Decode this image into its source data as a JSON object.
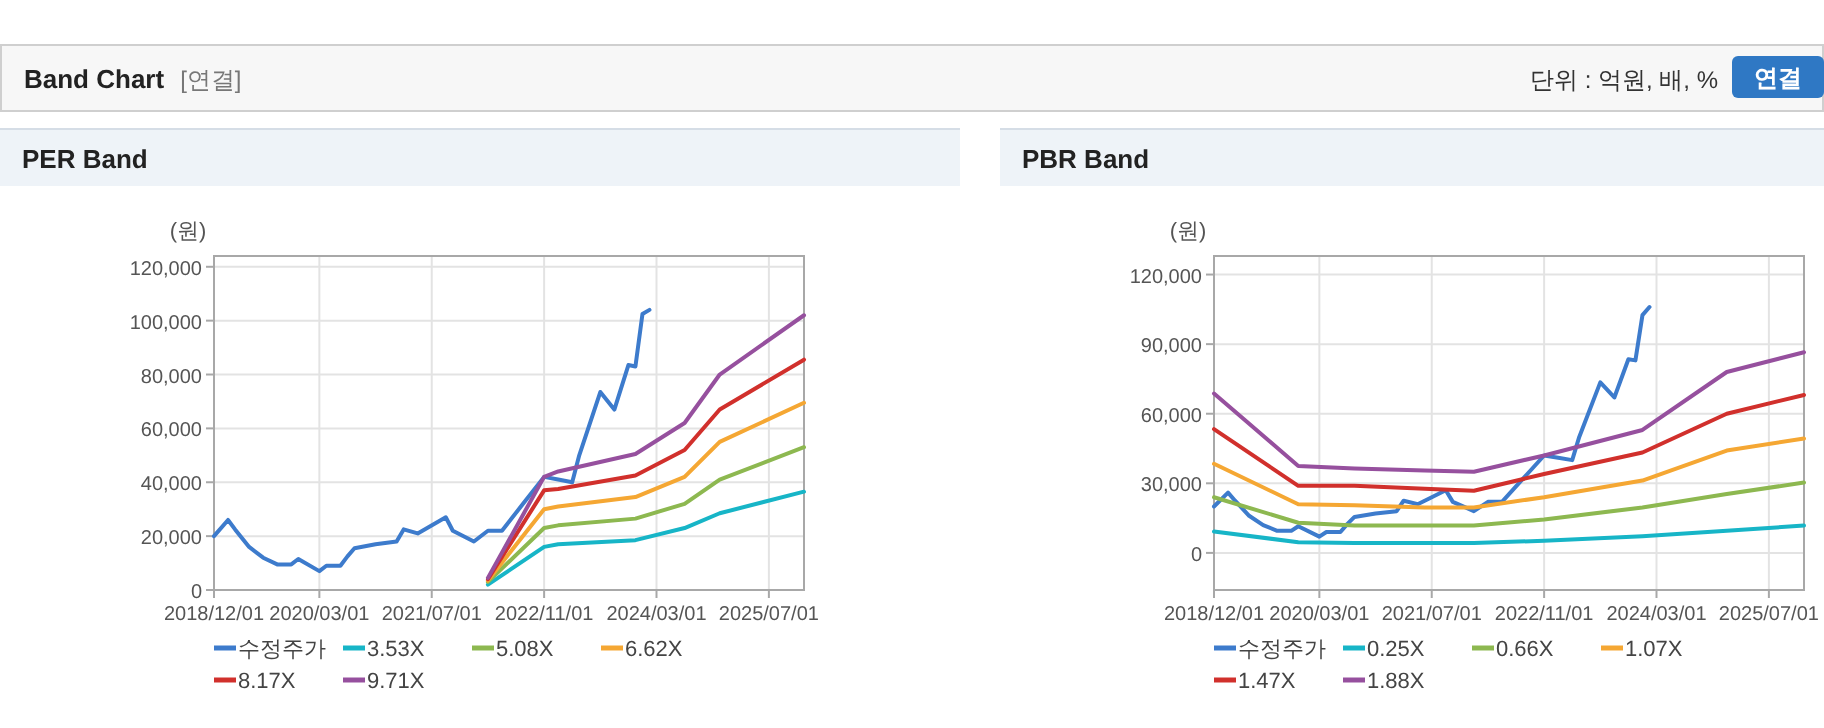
{
  "chart_data": [
    {
      "type": "other",
      "title": "Band Chart",
      "annotations": [
        "[연결]",
        "단위 : 억원, 배, %",
        "연결"
      ]
    },
    {
      "type": "line",
      "title": "PER Band",
      "ylabel": "(원)",
      "xlim": [
        "2018-12-01",
        "2025-12-01"
      ],
      "ylim": [
        0,
        124000
      ],
      "xticks": [
        {
          "value": "2018-12-01",
          "label": "2018/12/01"
        },
        {
          "value": "2020-03-01",
          "label": "2020/03/01"
        },
        {
          "value": "2021-07-01",
          "label": "2021/07/01"
        },
        {
          "value": "2022-11-01",
          "label": "2022/11/01"
        },
        {
          "value": "2024-03-01",
          "label": "2024/03/01"
        },
        {
          "value": "2025-07-01",
          "label": "2025/07/01"
        }
      ],
      "yticks": [
        {
          "value": 0,
          "label": "0"
        },
        {
          "value": 20000,
          "label": "20,000"
        },
        {
          "value": 40000,
          "label": "40,000"
        },
        {
          "value": 60000,
          "label": "60,000"
        },
        {
          "value": 80000,
          "label": "80,000"
        },
        {
          "value": 100000,
          "label": "100,000"
        },
        {
          "value": 120000,
          "label": "120,000"
        }
      ],
      "grid": true,
      "legend": "bottom",
      "series": [
        {
          "name": "수정주가",
          "color": "#3d7bcc",
          "x": [
            "2018-12",
            "2019-02",
            "2019-03",
            "2019-05",
            "2019-07",
            "2019-09",
            "2019-11",
            "2019-12",
            "2020-03",
            "2020-04",
            "2020-06",
            "2020-07",
            "2020-08",
            "2020-11",
            "2021-02",
            "2021-03",
            "2021-05",
            "2021-09",
            "2021-10",
            "2022-01",
            "2022-03",
            "2022-05",
            "2022-08",
            "2022-11",
            "2023-01",
            "2023-03",
            "2023-04",
            "2023-07",
            "2023-09",
            "2023-11",
            "2023-12",
            "2024-01",
            "2024-02"
          ],
          "values": [
            20000,
            26000,
            22500,
            16000,
            12000,
            9500,
            9500,
            11500,
            7000,
            9000,
            9000,
            12500,
            15500,
            17000,
            18000,
            22500,
            21000,
            27000,
            22000,
            18000,
            22000,
            22000,
            32000,
            42000,
            41000,
            40000,
            50000,
            73500,
            67000,
            83500,
            83000,
            102500,
            104000
          ]
        },
        {
          "name": "3.53X",
          "color": "#17b5c7",
          "x": [
            "2022-03",
            "2022-11",
            "2023-01",
            "2023-12",
            "2024-07",
            "2024-12",
            "2025-12"
          ],
          "values": [
            2000,
            16000,
            17000,
            18500,
            23000,
            28500,
            36500
          ]
        },
        {
          "name": "5.08X",
          "color": "#8db850",
          "x": [
            "2022-03",
            "2022-11",
            "2023-01",
            "2023-12",
            "2024-07",
            "2024-12",
            "2025-12"
          ],
          "values": [
            3000,
            23000,
            24000,
            26500,
            32000,
            41000,
            53000
          ]
        },
        {
          "name": "6.62X",
          "color": "#f5a733",
          "x": [
            "2022-03",
            "2022-11",
            "2023-01",
            "2023-12",
            "2024-07",
            "2024-12",
            "2025-12"
          ],
          "values": [
            3500,
            30000,
            31000,
            34500,
            42000,
            55000,
            69500
          ]
        },
        {
          "name": "8.17X",
          "color": "#d1302c",
          "x": [
            "2022-03",
            "2022-11",
            "2023-01",
            "2023-12",
            "2024-07",
            "2024-12",
            "2025-12"
          ],
          "values": [
            4000,
            37000,
            37500,
            42500,
            52000,
            67000,
            85500
          ]
        },
        {
          "name": "9.71X",
          "color": "#96509e",
          "x": [
            "2022-03",
            "2022-11",
            "2023-01",
            "2023-12",
            "2024-07",
            "2024-12",
            "2025-12"
          ],
          "values": [
            4500,
            42000,
            44000,
            50500,
            62000,
            80000,
            102000
          ]
        }
      ]
    },
    {
      "type": "line",
      "title": "PBR Band",
      "ylabel": "(원)",
      "xlim": [
        "2018-12-01",
        "2025-12-01"
      ],
      "ylim": [
        -16000,
        128000
      ],
      "xticks": [
        {
          "value": "2018-12-01",
          "label": "2018/12/01"
        },
        {
          "value": "2020-03-01",
          "label": "2020/03/01"
        },
        {
          "value": "2021-07-01",
          "label": "2021/07/01"
        },
        {
          "value": "2022-11-01",
          "label": "2022/11/01"
        },
        {
          "value": "2024-03-01",
          "label": "2024/03/01"
        },
        {
          "value": "2025-07-01",
          "label": "2025/07/01"
        }
      ],
      "yticks": [
        {
          "value": 0,
          "label": "0"
        },
        {
          "value": 30000,
          "label": "30,000"
        },
        {
          "value": 60000,
          "label": "60,000"
        },
        {
          "value": 90000,
          "label": "90,000"
        },
        {
          "value": 120000,
          "label": "120,000"
        }
      ],
      "grid": true,
      "legend": "bottom",
      "series": [
        {
          "name": "수정주가",
          "color": "#3d7bcc",
          "x": [
            "2018-12",
            "2019-02",
            "2019-03",
            "2019-05",
            "2019-07",
            "2019-09",
            "2019-11",
            "2019-12",
            "2020-03",
            "2020-04",
            "2020-06",
            "2020-07",
            "2020-08",
            "2020-11",
            "2021-02",
            "2021-03",
            "2021-05",
            "2021-09",
            "2021-10",
            "2022-01",
            "2022-03",
            "2022-05",
            "2022-08",
            "2022-11",
            "2023-01",
            "2023-03",
            "2023-04",
            "2023-07",
            "2023-09",
            "2023-11",
            "2023-12",
            "2024-01",
            "2024-02"
          ],
          "values": [
            20000,
            26000,
            22500,
            16000,
            12000,
            9500,
            9500,
            11500,
            7000,
            9000,
            9000,
            12500,
            15500,
            17000,
            18000,
            22500,
            21000,
            27000,
            22000,
            18000,
            22000,
            22000,
            32000,
            42000,
            41000,
            40000,
            50000,
            73500,
            67000,
            83500,
            83000,
            102500,
            106000
          ]
        },
        {
          "name": "0.25X",
          "color": "#17b5c7",
          "x": [
            "2018-12",
            "2019-12",
            "2020-08",
            "2021-06",
            "2022-01",
            "2022-11",
            "2024-01",
            "2025-01",
            "2025-12"
          ],
          "values": [
            9200,
            4600,
            4300,
            4300,
            4300,
            5200,
            7200,
            9500,
            11800
          ]
        },
        {
          "name": "0.66X",
          "color": "#8db850",
          "x": [
            "2018-12",
            "2019-12",
            "2020-08",
            "2021-06",
            "2022-01",
            "2022-11",
            "2024-01",
            "2025-01",
            "2025-12"
          ],
          "values": [
            24000,
            13000,
            11800,
            11800,
            11800,
            14400,
            19600,
            25400,
            30300
          ]
        },
        {
          "name": "1.07X",
          "color": "#f5a733",
          "x": [
            "2018-12",
            "2019-12",
            "2020-08",
            "2021-06",
            "2022-01",
            "2022-11",
            "2024-01",
            "2025-01",
            "2025-12"
          ],
          "values": [
            38400,
            21000,
            20500,
            19600,
            19600,
            24000,
            31200,
            44100,
            49300
          ]
        },
        {
          "name": "1.47X",
          "color": "#d1302c",
          "x": [
            "2018-12",
            "2019-12",
            "2020-08",
            "2021-06",
            "2022-01",
            "2022-11",
            "2024-01",
            "2025-01",
            "2025-12"
          ],
          "values": [
            53400,
            28900,
            28900,
            27700,
            26800,
            34000,
            43300,
            60000,
            68100
          ]
        },
        {
          "name": "1.88X",
          "color": "#96509e",
          "x": [
            "2018-12",
            "2019-12",
            "2020-08",
            "2021-06",
            "2022-01",
            "2022-11",
            "2024-01",
            "2025-01",
            "2025-12"
          ],
          "values": [
            68700,
            37500,
            36400,
            35500,
            35000,
            42000,
            53000,
            78000,
            86500
          ]
        }
      ]
    }
  ]
}
